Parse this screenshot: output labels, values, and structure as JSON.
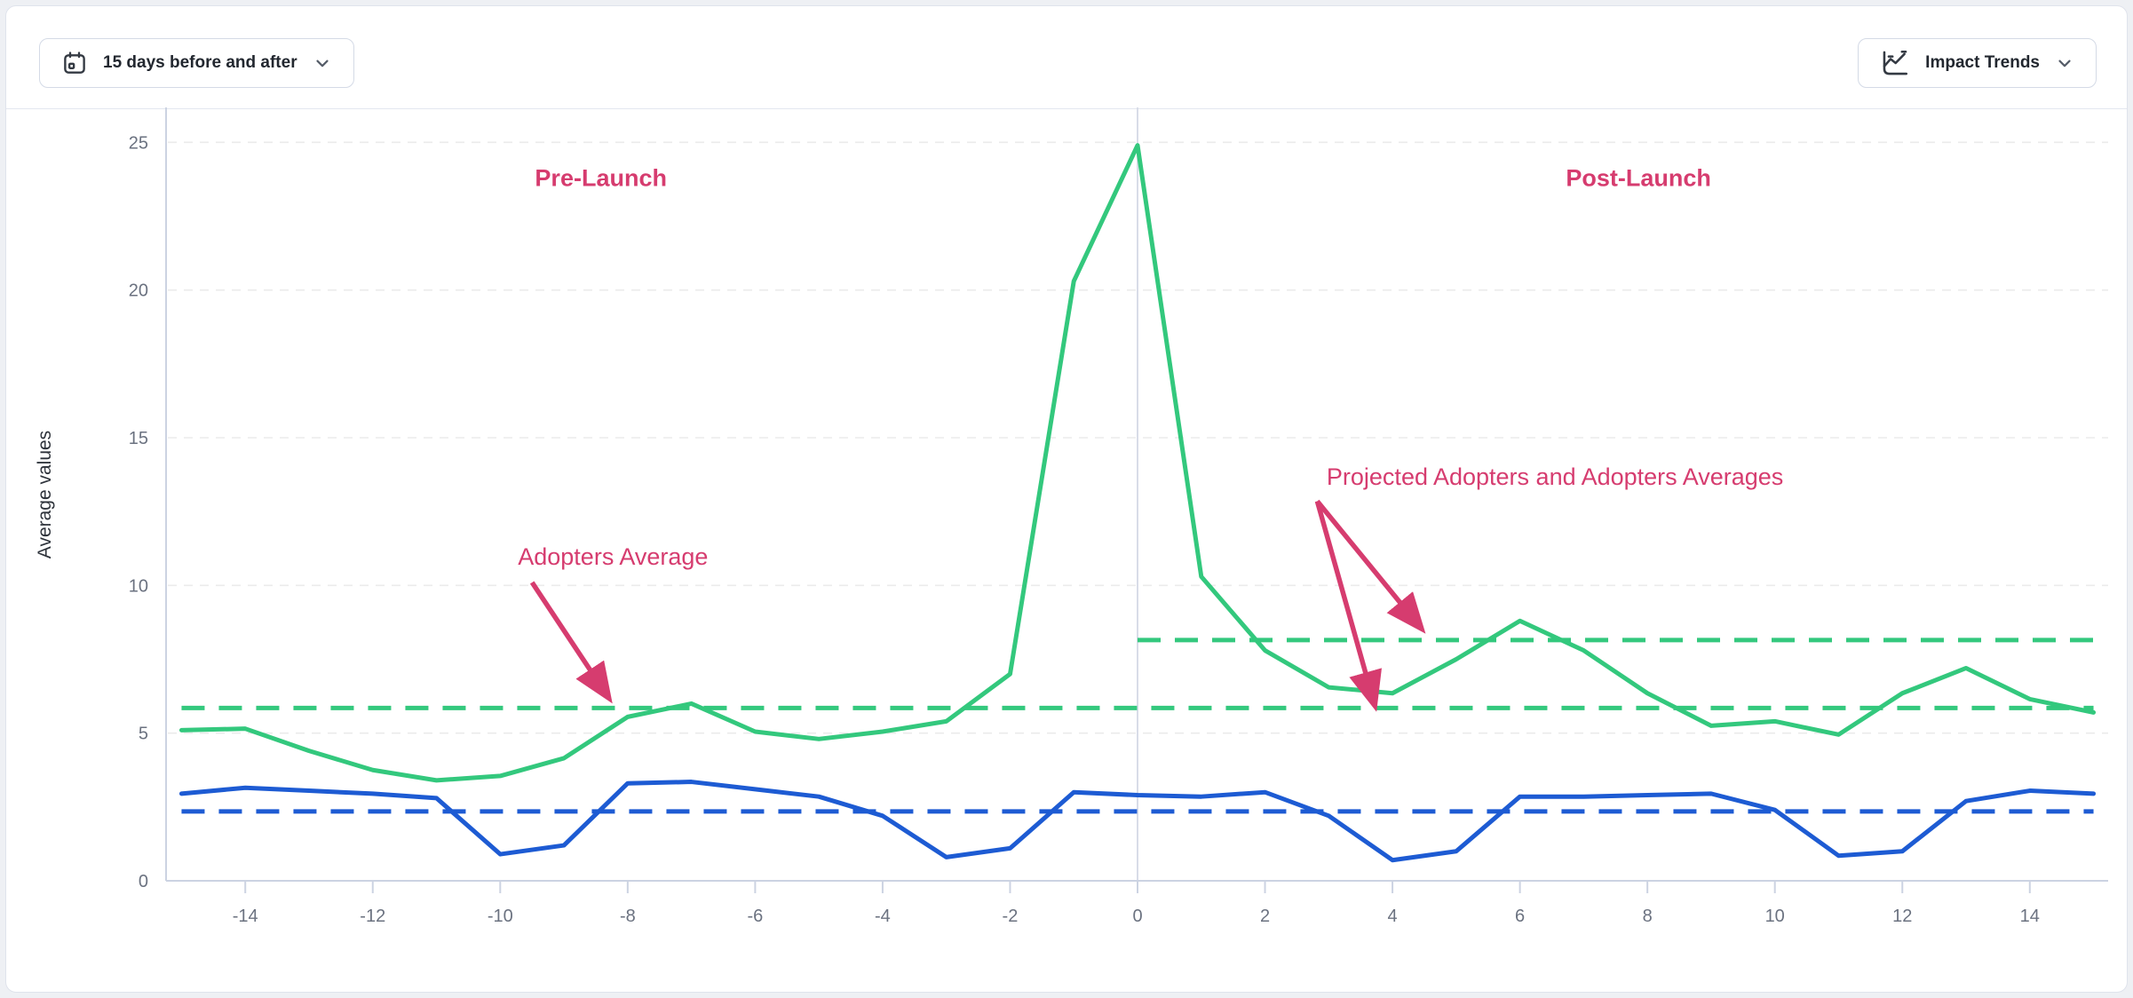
{
  "toolbar": {
    "date_range": {
      "label": "15 days before and after",
      "icon": "calendar-icon"
    },
    "trend": {
      "label": "Impact Trends",
      "icon": "line-chart-icon"
    }
  },
  "colors": {
    "adopters_green": "#33c87d",
    "comparison_blue": "#1d5bd3",
    "annotation_pink": "#d63c6f",
    "grid": "#ebebeb",
    "axis": "#ccd3e2",
    "tick_label": "#6b7280",
    "axis_title": "#2e333b"
  },
  "chart_data": {
    "type": "line",
    "title": "",
    "xlabel": "",
    "ylabel": "Average values",
    "xlim": [
      -15,
      15
    ],
    "ylim": [
      0,
      26
    ],
    "grid": true,
    "legend": "none",
    "x_axis_ticks": [
      -14,
      -12,
      -10,
      -8,
      -6,
      -4,
      -2,
      0,
      2,
      4,
      6,
      8,
      10,
      12,
      14
    ],
    "y_axis_ticks": [
      0,
      5,
      10,
      15,
      20,
      25
    ],
    "x": [
      -15,
      -14,
      -13,
      -12,
      -11,
      -10,
      -9,
      -8,
      -7,
      -6,
      -5,
      -4,
      -3,
      -2,
      -1,
      0,
      1,
      2,
      3,
      4,
      5,
      6,
      7,
      8,
      9,
      10,
      11,
      12,
      13,
      14,
      15
    ],
    "series": [
      {
        "id": "adopters",
        "color": "#33c87d",
        "style": "solid",
        "values": [
          5.1,
          5.15,
          4.4,
          3.75,
          3.4,
          3.55,
          4.15,
          5.55,
          6.0,
          5.05,
          4.8,
          5.05,
          5.4,
          7.0,
          20.3,
          24.9,
          10.3,
          7.8,
          6.55,
          6.35,
          7.5,
          8.8,
          7.8,
          6.35,
          5.25,
          5.4,
          4.95,
          6.35,
          7.2,
          6.15,
          5.7
        ]
      },
      {
        "id": "comparison",
        "color": "#1d5bd3",
        "style": "solid",
        "values": [
          2.95,
          3.15,
          3.05,
          2.95,
          2.8,
          0.9,
          1.2,
          3.3,
          3.35,
          3.1,
          2.85,
          2.2,
          0.8,
          1.1,
          3.0,
          2.9,
          2.85,
          3.0,
          2.2,
          0.7,
          1.0,
          2.85,
          2.85,
          2.9,
          2.95,
          2.4,
          0.85,
          1.0,
          2.7,
          3.05,
          2.95
        ]
      }
    ],
    "reference_lines": [
      {
        "id": "adopters-average",
        "color": "#33c87d",
        "style": "dashed",
        "value": 5.85,
        "x_start": -15,
        "x_end": 15
      },
      {
        "id": "projected-adopters-average",
        "color": "#33c87d",
        "style": "dashed",
        "value": 8.15,
        "x_start": 0,
        "x_end": 15
      },
      {
        "id": "comparison-average",
        "color": "#1d5bd3",
        "style": "dashed",
        "value": 2.35,
        "x_start": -15,
        "x_end": 15
      }
    ],
    "launch_line": {
      "x": 0
    },
    "annotations": [
      {
        "text": "Pre-Launch",
        "x": -8.42,
        "y": 23.8,
        "bold": true,
        "arrows": []
      },
      {
        "text": "Post-Launch",
        "x": 7.86,
        "y": 23.8,
        "bold": true,
        "arrows": []
      },
      {
        "text": "Adopters Average",
        "x": -8.23,
        "y": 10.97,
        "bold": false,
        "arrows": [
          {
            "x1": -9.5,
            "y1": 10.1,
            "x2": -8.3,
            "y2": 6.2
          }
        ]
      },
      {
        "text": "Projected Adopters and Adopters Averages",
        "x": 6.55,
        "y": 13.68,
        "bold": false,
        "arrows": [
          {
            "x1": 2.82,
            "y1": 12.85,
            "x2": 4.45,
            "y2": 8.55
          },
          {
            "x1": 2.82,
            "y1": 12.85,
            "x2": 3.72,
            "y2": 5.95
          }
        ]
      }
    ]
  }
}
